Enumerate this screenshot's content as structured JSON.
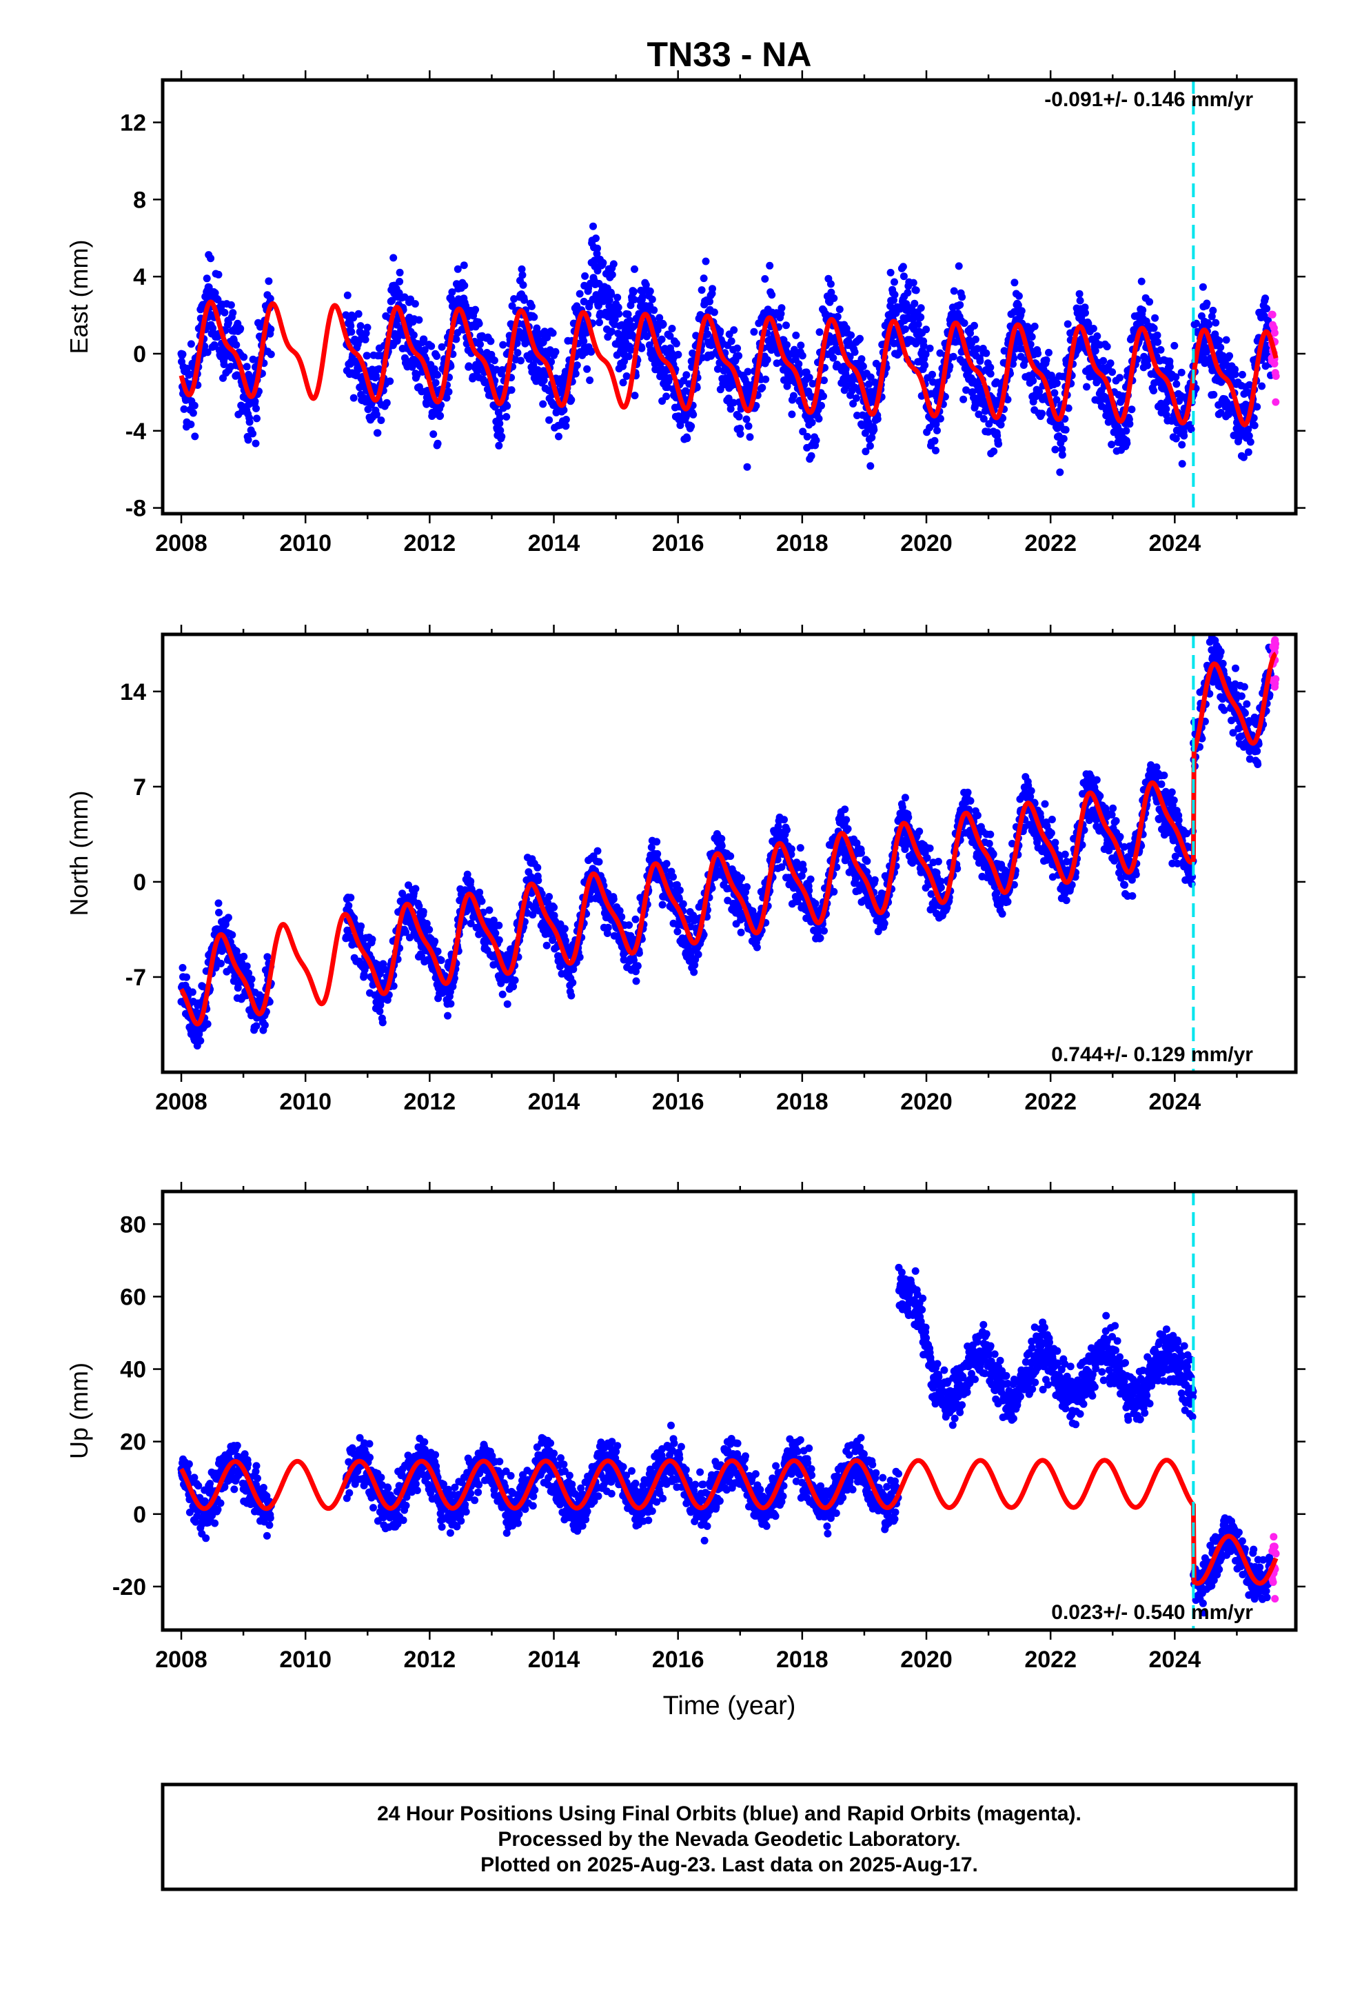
{
  "chart_data": {
    "type": "scatter",
    "title": "TN33 - NA",
    "xlabel": "Time (year)",
    "x_ticks": [
      "2008",
      "2010",
      "2012",
      "2014",
      "2016",
      "2018",
      "2020",
      "2022",
      "2024"
    ],
    "xlim": [
      2007.7,
      2025.95
    ],
    "equipment_change_epoch": 2024.3,
    "series_colors": {
      "final_orbits": "#0000ff",
      "rapid_orbits": "#ff22ee",
      "model_fit": "#ff0000",
      "marker_line": "#00e5ee"
    },
    "panels": [
      {
        "name": "east",
        "ylabel": "East (mm)",
        "ylim": [
          -8.3,
          14.2
        ],
        "y_ticks": [
          "12",
          "8",
          "4",
          "0",
          "-4",
          "-8"
        ],
        "y_tick_values": [
          12,
          8,
          4,
          0,
          -4,
          -8
        ],
        "rate_text": "-0.091+/- 0.146 mm/yr",
        "rate_position": "top-right",
        "fit": {
          "offset": 0.3,
          "trend": -0.091,
          "annual_amp": 2.0,
          "annual_phase": 0.3,
          "semiannual_amp": 0.8,
          "steps": []
        },
        "noise": 1.6,
        "anomalies": [
          {
            "from": 2014.6,
            "to": 2015.3,
            "shift": 3.5
          },
          {
            "from": 2019.6,
            "to": 2020.0,
            "shift": 2.0
          }
        ]
      },
      {
        "name": "north",
        "ylabel": "North (mm)",
        "ylim": [
          -14,
          18.2
        ],
        "y_ticks": [
          "14",
          "7",
          "0",
          "-7"
        ],
        "y_tick_values": [
          14,
          7,
          0,
          -7
        ],
        "rate_text": "0.744+/- 0.129 mm/yr",
        "rate_position": "bottom-right",
        "fit": {
          "offset": -7.5,
          "trend": 0.744,
          "annual_amp": 2.8,
          "annual_phase": 0.45,
          "semiannual_amp": 0.8,
          "steps": [
            {
              "at": 2024.3,
              "size": 8.0
            }
          ]
        },
        "noise": 1.4,
        "anomalies": []
      },
      {
        "name": "up",
        "ylabel": "Up (mm)",
        "ylim": [
          -32,
          89
        ],
        "y_ticks": [
          "80",
          "60",
          "40",
          "20",
          "0",
          "-20"
        ],
        "y_tick_values": [
          80,
          60,
          40,
          20,
          0,
          -20
        ],
        "rate_text": "0.023+/- 0.540 mm/yr",
        "rate_position": "bottom-right",
        "fit": {
          "offset": 8.0,
          "trend": 0.023,
          "annual_amp": 6.5,
          "annual_phase": 0.62,
          "semiannual_amp": 0.0,
          "steps": [
            {
              "at": 2024.3,
              "size": -21.0
            }
          ]
        },
        "noise": 5.0,
        "anomalies": [
          {
            "from": 2019.55,
            "to": 2020.15,
            "shift": 58.0
          },
          {
            "from": 2020.15,
            "to": 2024.3,
            "shift": 30.0
          }
        ]
      }
    ],
    "data_gaps": [
      [
        2009.45,
        2010.65
      ]
    ],
    "last_data": 2025.63
  },
  "footer": {
    "line1": "24 Hour Positions Using Final Orbits (blue) and Rapid Orbits (magenta).",
    "line2": "Processed by the Nevada Geodetic Laboratory.",
    "line3": "Plotted on 2025-Aug-23. Last data on 2025-Aug-17."
  }
}
